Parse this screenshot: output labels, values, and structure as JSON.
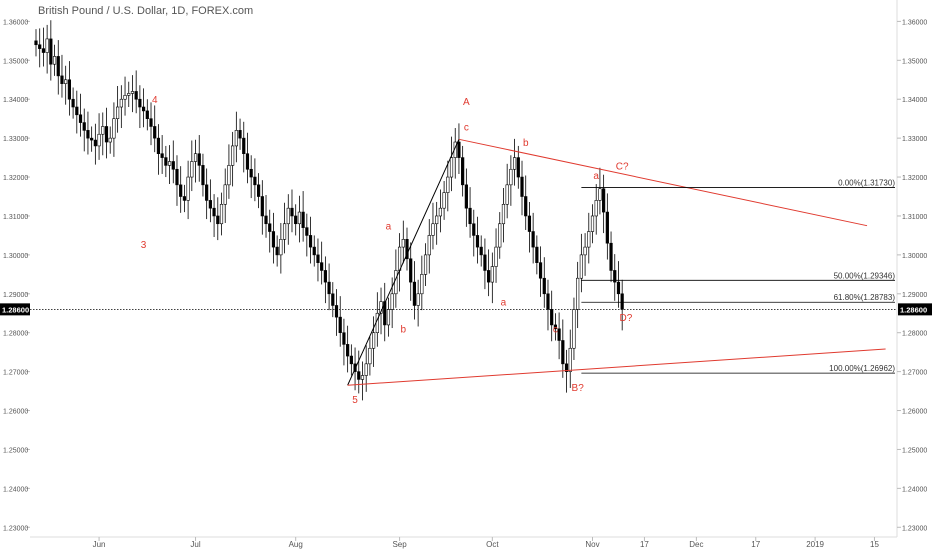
{
  "title": "British Pound / U.S. Dollar, 1D, FOREX.com",
  "colors": {
    "candle": "#000000",
    "wave": "#e03a2f",
    "fib": "#000000",
    "price_label_bg": "#000000",
    "axis_text": "#555555"
  },
  "chart_data": {
    "type": "candlestick",
    "title": "British Pound / U.S. Dollar, 1D, FOREX.com",
    "ylim": [
      1.2275,
      1.3655
    ],
    "y_ticks": [
      "1.23000",
      "1.24000",
      "1.25000",
      "1.26000",
      "1.27000",
      "1.28000",
      "1.29000",
      "1.30000",
      "1.31000",
      "1.32000",
      "1.33000",
      "1.34000",
      "1.35000",
      "1.36000"
    ],
    "x_ticks": [
      "Jun",
      "Jul",
      "Aug",
      "Sep",
      "Oct",
      "Nov",
      "17",
      "Dec",
      "17",
      "2019",
      "15"
    ],
    "current_price": "1.28600",
    "grid": false,
    "close_series": [
      1.354,
      1.353,
      1.352,
      1.3555,
      1.349,
      1.351,
      1.346,
      1.344,
      1.345,
      1.34,
      1.338,
      1.336,
      1.334,
      1.332,
      1.33,
      1.3295,
      1.328,
      1.331,
      1.333,
      1.329,
      1.33,
      1.335,
      1.338,
      1.34,
      1.341,
      1.3415,
      1.342,
      1.34,
      1.338,
      1.337,
      1.335,
      1.333,
      1.33,
      1.326,
      1.325,
      1.323,
      1.324,
      1.322,
      1.318,
      1.315,
      1.314,
      1.32,
      1.324,
      1.326,
      1.323,
      1.318,
      1.314,
      1.312,
      1.31,
      1.308,
      1.313,
      1.318,
      1.323,
      1.328,
      1.332,
      1.33,
      1.326,
      1.322,
      1.32,
      1.318,
      1.315,
      1.31,
      1.308,
      1.306,
      1.302,
      1.3,
      1.304,
      1.308,
      1.312,
      1.31,
      1.308,
      1.311,
      1.307,
      1.305,
      1.302,
      1.3,
      1.298,
      1.296,
      1.293,
      1.29,
      1.287,
      1.284,
      1.28,
      1.277,
      1.274,
      1.272,
      1.27,
      1.268,
      1.269,
      1.272,
      1.276,
      1.28,
      1.285,
      1.288,
      1.282,
      1.286,
      1.29,
      1.296,
      1.302,
      1.304,
      1.299,
      1.293,
      1.287,
      1.29,
      1.295,
      1.3,
      1.305,
      1.308,
      1.31,
      1.312,
      1.316,
      1.32,
      1.325,
      1.329,
      1.325,
      1.318,
      1.312,
      1.308,
      1.305,
      1.302,
      1.3,
      1.296,
      1.293,
      1.297,
      1.302,
      1.308,
      1.313,
      1.318,
      1.322,
      1.325,
      1.32,
      1.315,
      1.31,
      1.306,
      1.302,
      1.298,
      1.294,
      1.29,
      1.286,
      1.282,
      1.281,
      1.278,
      1.272,
      1.27,
      1.276,
      1.286,
      1.294,
      1.3,
      1.302,
      1.306,
      1.31,
      1.314,
      1.317,
      1.311,
      1.303,
      1.296,
      1.293,
      1.29,
      1.286
    ]
  },
  "annotations": {
    "wave_labels": [
      {
        "text": "4",
        "price": 1.339,
        "idx": 32
      },
      {
        "text": "3",
        "price": 1.3018,
        "idx": 29
      },
      {
        "text": "5",
        "price": 1.262,
        "idx": 86
      },
      {
        "text": "a",
        "price": 1.3065,
        "idx": 95
      },
      {
        "text": "b",
        "price": 1.28,
        "idx": 99
      },
      {
        "text": "A",
        "price": 1.3385,
        "idx": 116
      },
      {
        "text": "c",
        "price": 1.332,
        "idx": 116
      },
      {
        "text": "a",
        "price": 1.287,
        "idx": 126
      },
      {
        "text": "b",
        "price": 1.328,
        "idx": 132
      },
      {
        "text": "c",
        "price": 1.28,
        "idx": 140
      },
      {
        "text": "a",
        "price": 1.3195,
        "idx": 151
      },
      {
        "text": "C?",
        "price": 1.322,
        "idx": 158
      },
      {
        "text": "B?",
        "price": 1.265,
        "idx": 146
      },
      {
        "text": "D?",
        "price": 1.283,
        "idx": 159
      }
    ],
    "fib_levels": [
      {
        "label": "0.00%(1.31730)",
        "price": 1.3173
      },
      {
        "label": "50.00%(1.29346)",
        "price": 1.29346
      },
      {
        "label": "61.80%(1.28783)",
        "price": 1.28783
      },
      {
        "label": "100.00%(1.26962)",
        "price": 1.26962
      }
    ]
  }
}
